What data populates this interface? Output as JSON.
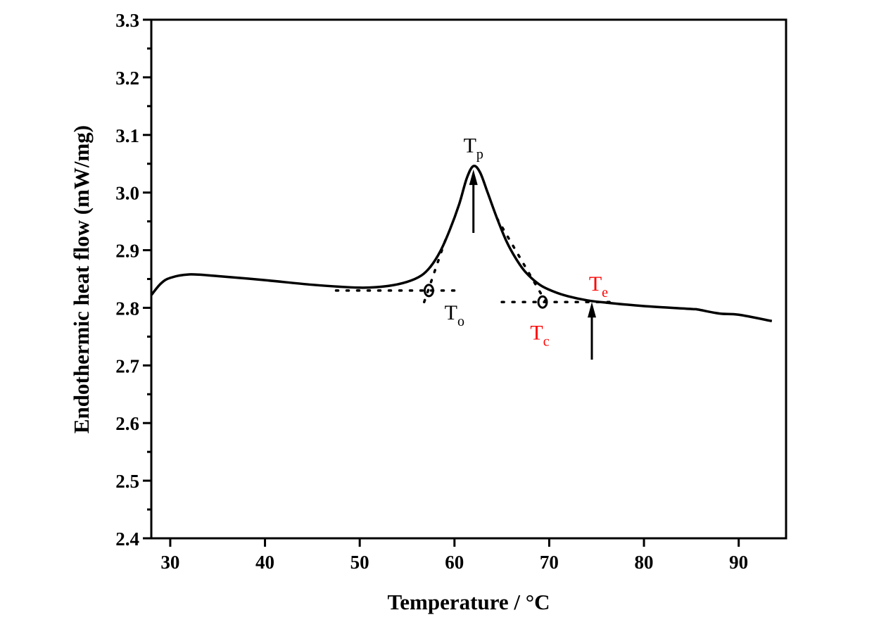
{
  "chart_data": {
    "type": "line",
    "title": "",
    "xlabel": "Temperature / °C",
    "ylabel": "Endothermic heat flow (mW/mg)",
    "xlim": [
      28,
      95
    ],
    "ylim": [
      2.4,
      3.3
    ],
    "xticks": [
      30,
      40,
      50,
      60,
      70,
      80,
      90
    ],
    "yticks": [
      2.4,
      2.5,
      2.6,
      2.7,
      2.8,
      2.9,
      3.0,
      3.1,
      3.2,
      3.3
    ],
    "ytick_labels": [
      "2.4",
      "2.5",
      "2.6",
      "2.7",
      "2.8",
      "2.9",
      "3.0",
      "3.1",
      "3.2",
      "3.3"
    ],
    "grid": false,
    "series": [
      {
        "x": [
          28,
          29,
          30,
          32,
          35,
          40,
          45,
          50,
          53,
          55,
          56.5,
          57.5,
          58.5,
          59.5,
          60.5,
          61.3,
          62,
          62.7,
          63.5,
          64.5,
          65.5,
          66.5,
          67.5,
          69,
          70.5,
          72,
          74,
          76,
          80,
          85,
          85.7,
          88,
          90,
          93.5
        ],
        "y": [
          2.822,
          2.842,
          2.852,
          2.858,
          2.855,
          2.848,
          2.84,
          2.835,
          2.838,
          2.845,
          2.856,
          2.872,
          2.898,
          2.935,
          2.98,
          3.025,
          3.046,
          3.035,
          3.0,
          2.955,
          2.915,
          2.885,
          2.862,
          2.84,
          2.828,
          2.82,
          2.813,
          2.809,
          2.803,
          2.798,
          2.797,
          2.79,
          2.788,
          2.777
        ],
        "color": "#000000"
      }
    ],
    "annotations": [
      {
        "text": "T",
        "sub": "p",
        "x": 62,
        "y": 3.07,
        "color": "#000000"
      },
      {
        "text": "T",
        "sub": "o",
        "x": 60,
        "y": 2.78,
        "color": "#000000"
      },
      {
        "text": "T",
        "sub": "c",
        "x": 69,
        "y": 2.745,
        "color": "#ff0000"
      },
      {
        "text": "T",
        "sub": "e",
        "x": 75.2,
        "y": 2.83,
        "color": "#ff0000"
      }
    ],
    "arrows": [
      {
        "x": 62,
        "y_from": 2.93,
        "y_to": 3.04
      },
      {
        "x": 74.5,
        "y_from": 2.71,
        "y_to": 2.81
      }
    ],
    "dotted_lines": [
      {
        "x": [
          47.5,
          60
        ],
        "y": [
          2.83,
          2.83
        ]
      },
      {
        "x": [
          56.8,
          59.3
        ],
        "y": [
          2.81,
          2.93
        ]
      },
      {
        "x": [
          65,
          77
        ],
        "y": [
          2.81,
          2.81
        ]
      },
      {
        "x": [
          64.5,
          70
        ],
        "y": [
          2.955,
          2.8
        ]
      }
    ],
    "markers": [
      {
        "x": 57.3,
        "y": 2.83,
        "shape": "circle"
      },
      {
        "x": 69.3,
        "y": 2.81,
        "shape": "circle"
      }
    ]
  }
}
